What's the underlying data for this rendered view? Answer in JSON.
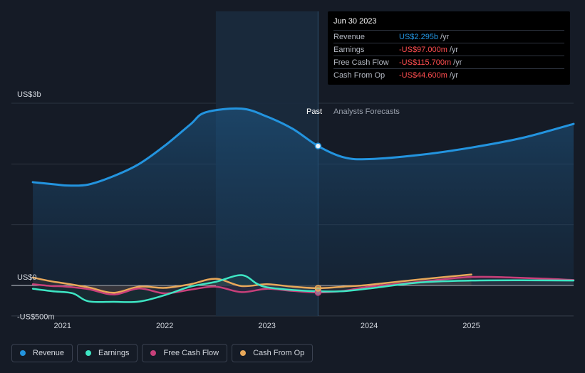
{
  "tooltip": {
    "date": "Jun 30 2023",
    "rows": [
      {
        "label": "Revenue",
        "value": "US$2.295b",
        "unit": "/yr",
        "color": "#2394df"
      },
      {
        "label": "Earnings",
        "value": "-US$97.000m",
        "unit": "/yr",
        "color": "#ff4d4f"
      },
      {
        "label": "Free Cash Flow",
        "value": "-US$115.700m",
        "unit": "/yr",
        "color": "#ff4d4f"
      },
      {
        "label": "Cash From Op",
        "value": "-US$44.600m",
        "unit": "/yr",
        "color": "#ff4d4f"
      }
    ]
  },
  "labels": {
    "past": "Past",
    "forecast": "Analysts Forecasts"
  },
  "legend": [
    {
      "label": "Revenue",
      "color": "#2394df"
    },
    {
      "label": "Earnings",
      "color": "#3ee6c4"
    },
    {
      "label": "Free Cash Flow",
      "color": "#c8407a"
    },
    {
      "label": "Cash From Op",
      "color": "#e8a85a"
    }
  ],
  "chart_data": {
    "type": "line",
    "y_ticks": [
      {
        "value": 3000,
        "label": "US$3b"
      },
      {
        "value": 0,
        "label": "US$0"
      },
      {
        "value": -500,
        "label": "-US$500m"
      }
    ],
    "ylim": [
      -500,
      3000
    ],
    "x_ticks": [
      {
        "value": 2021,
        "label": "2021"
      },
      {
        "value": 2022,
        "label": "2022"
      },
      {
        "value": 2023,
        "label": "2023"
      },
      {
        "value": 2024,
        "label": "2024"
      },
      {
        "value": 2025,
        "label": "2025"
      }
    ],
    "xlim": [
      2020.5,
      2026
    ],
    "past_end": 2023.5,
    "highlight_start": 2022.5,
    "series": [
      {
        "name": "Revenue",
        "color": "#2394df",
        "area": true,
        "points": [
          [
            2020.71,
            1700
          ],
          [
            2020.95,
            1660
          ],
          [
            2021.05,
            1645
          ],
          [
            2021.25,
            1660
          ],
          [
            2021.5,
            1800
          ],
          [
            2021.75,
            2000
          ],
          [
            2022.0,
            2300
          ],
          [
            2022.25,
            2650
          ],
          [
            2022.4,
            2850
          ],
          [
            2022.75,
            2910
          ],
          [
            2023.0,
            2780
          ],
          [
            2023.25,
            2580
          ],
          [
            2023.5,
            2295
          ],
          [
            2023.75,
            2110
          ],
          [
            2024.0,
            2080
          ],
          [
            2024.5,
            2150
          ],
          [
            2025.0,
            2270
          ],
          [
            2025.5,
            2430
          ],
          [
            2026.0,
            2660
          ]
        ]
      },
      {
        "name": "Earnings",
        "color": "#3ee6c4",
        "area": false,
        "points": [
          [
            2020.71,
            -55
          ],
          [
            2020.9,
            -95
          ],
          [
            2021.1,
            -130
          ],
          [
            2021.25,
            -260
          ],
          [
            2021.5,
            -270
          ],
          [
            2021.75,
            -265
          ],
          [
            2022.0,
            -160
          ],
          [
            2022.25,
            -20
          ],
          [
            2022.5,
            60
          ],
          [
            2022.75,
            170
          ],
          [
            2022.9,
            30
          ],
          [
            2023.0,
            -30
          ],
          [
            2023.25,
            -75
          ],
          [
            2023.5,
            -97
          ],
          [
            2023.75,
            -95
          ],
          [
            2024.0,
            -50
          ],
          [
            2024.5,
            50
          ],
          [
            2025.0,
            80
          ],
          [
            2025.5,
            85
          ],
          [
            2026.0,
            80
          ]
        ]
      },
      {
        "name": "Free Cash Flow",
        "color": "#c8407a",
        "area": false,
        "points": [
          [
            2020.71,
            20
          ],
          [
            2020.9,
            -10
          ],
          [
            2021.0,
            -15
          ],
          [
            2021.25,
            -60
          ],
          [
            2021.5,
            -150
          ],
          [
            2021.75,
            -50
          ],
          [
            2022.0,
            -130
          ],
          [
            2022.25,
            -70
          ],
          [
            2022.5,
            -20
          ],
          [
            2022.75,
            -110
          ],
          [
            2023.0,
            -55
          ],
          [
            2023.25,
            -90
          ],
          [
            2023.5,
            -116
          ],
          [
            2023.75,
            -90
          ],
          [
            2024.0,
            -20
          ],
          [
            2024.5,
            60
          ],
          [
            2025.0,
            140
          ],
          [
            2025.5,
            125
          ],
          [
            2026.0,
            90
          ]
        ]
      },
      {
        "name": "Cash From Op",
        "color": "#e8a85a",
        "area": false,
        "points": [
          [
            2020.71,
            130
          ],
          [
            2020.9,
            65
          ],
          [
            2021.0,
            40
          ],
          [
            2021.25,
            -30
          ],
          [
            2021.5,
            -120
          ],
          [
            2021.75,
            -20
          ],
          [
            2022.0,
            -40
          ],
          [
            2022.25,
            20
          ],
          [
            2022.5,
            110
          ],
          [
            2022.75,
            -10
          ],
          [
            2023.0,
            20
          ],
          [
            2023.25,
            -20
          ],
          [
            2023.5,
            -45
          ],
          [
            2023.75,
            -20
          ],
          [
            2024.0,
            10
          ],
          [
            2024.5,
            100
          ],
          [
            2025.0,
            180
          ]
        ]
      }
    ]
  }
}
